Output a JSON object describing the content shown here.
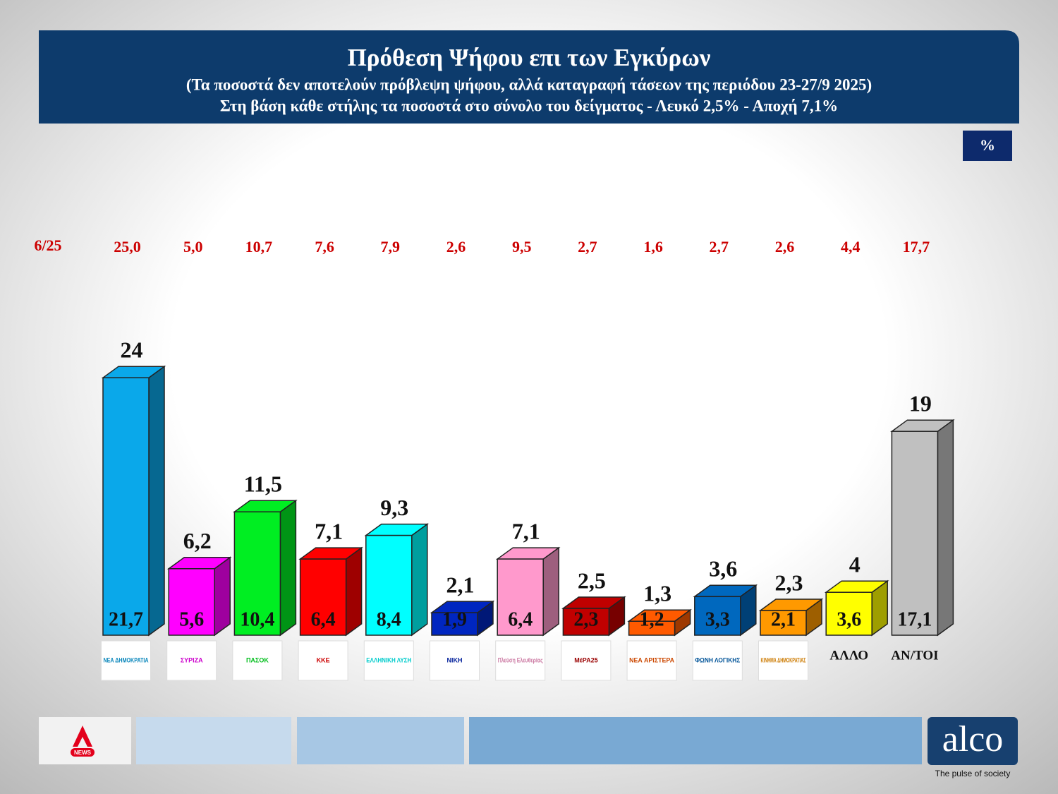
{
  "chart_data": {
    "type": "bar3d",
    "title": "Πρόθεση Ψήφου επι των Εγκύρων",
    "subtitle": "(Τα ποσοστά δεν αποτελούν πρόβλεψη ψήφου, αλλά καταγραφή τάσεων της περιόδου  23-27/9 2025)",
    "subtitle2": "Στη βάση κάθε στήλης τα ποσοστά στο σύνολο του δείγματος - Λευκό 2,5% - Αποχή 7,1%",
    "unit": "%",
    "categories": [
      "ΝΕΑ ΔΗΜΟΚΡΑΤΙΑ",
      "ΣΥΡΙΖΑ",
      "ΠΑΣΟΚ",
      "ΚΚΕ",
      "ΕΛΛΗΝΙΚΗ ΛΥΣΗ",
      "ΝΙΚΗ",
      "Πλεύση Ελευθερίας",
      "ΜέΡΑ25",
      "ΝΕΑ ΑΡΙΣΤΕΡΑ",
      "ΦΩΝΗ ΛΟΓΙΚΗΣ",
      "ΚΙΝΗΜΑ ΔΗΜΟΚΡΑΤΙΑΣ",
      "ΑΛΛΟ",
      "ΑΝ/ΤΟΙ"
    ],
    "colors": [
      "#0aa8ea",
      "#ff00ff",
      "#00ee22",
      "#ff0000",
      "#00ffff",
      "#0026c0",
      "#ff99cc",
      "#c00000",
      "#ff5a00",
      "#0068be",
      "#ff9900",
      "#ffff00",
      "#c0c0c0"
    ],
    "values": [
      24,
      6.2,
      11.5,
      7.1,
      9.3,
      2.1,
      7.1,
      2.5,
      1.3,
      3.6,
      2.3,
      4,
      19
    ],
    "value_labels": [
      "24",
      "6,2",
      "11,5",
      "7,1",
      "9,3",
      "2,1",
      "7,1",
      "2,5",
      "1,3",
      "3,6",
      "2,3",
      "4",
      "19"
    ],
    "base_values": [
      21.7,
      5.6,
      10.4,
      6.4,
      8.4,
      1.9,
      6.4,
      2.3,
      1.2,
      3.3,
      2.1,
      3.6,
      17.1
    ],
    "base_value_labels": [
      "21,7",
      "5,6",
      "10,4",
      "6,4",
      "8,4",
      "1,9",
      "6,4",
      "2,3",
      "1,2",
      "3,3",
      "2,1",
      "3,6",
      "17,1"
    ],
    "previous_label": "6/25",
    "previous_values": [
      25.0,
      5.0,
      10.7,
      7.6,
      7.9,
      2.6,
      9.5,
      2.7,
      1.6,
      2.7,
      2.6,
      4.4,
      17.7
    ],
    "previous_value_labels": [
      "25,0",
      "5,0",
      "10,7",
      "7,6",
      "7,9",
      "2,6",
      "9,5",
      "2,7",
      "1,6",
      "2,7",
      "2,6",
      "4,4",
      "17,7"
    ]
  },
  "footer": {
    "news": "NEWS",
    "brand": "alco",
    "tagline": "The pulse of society"
  }
}
